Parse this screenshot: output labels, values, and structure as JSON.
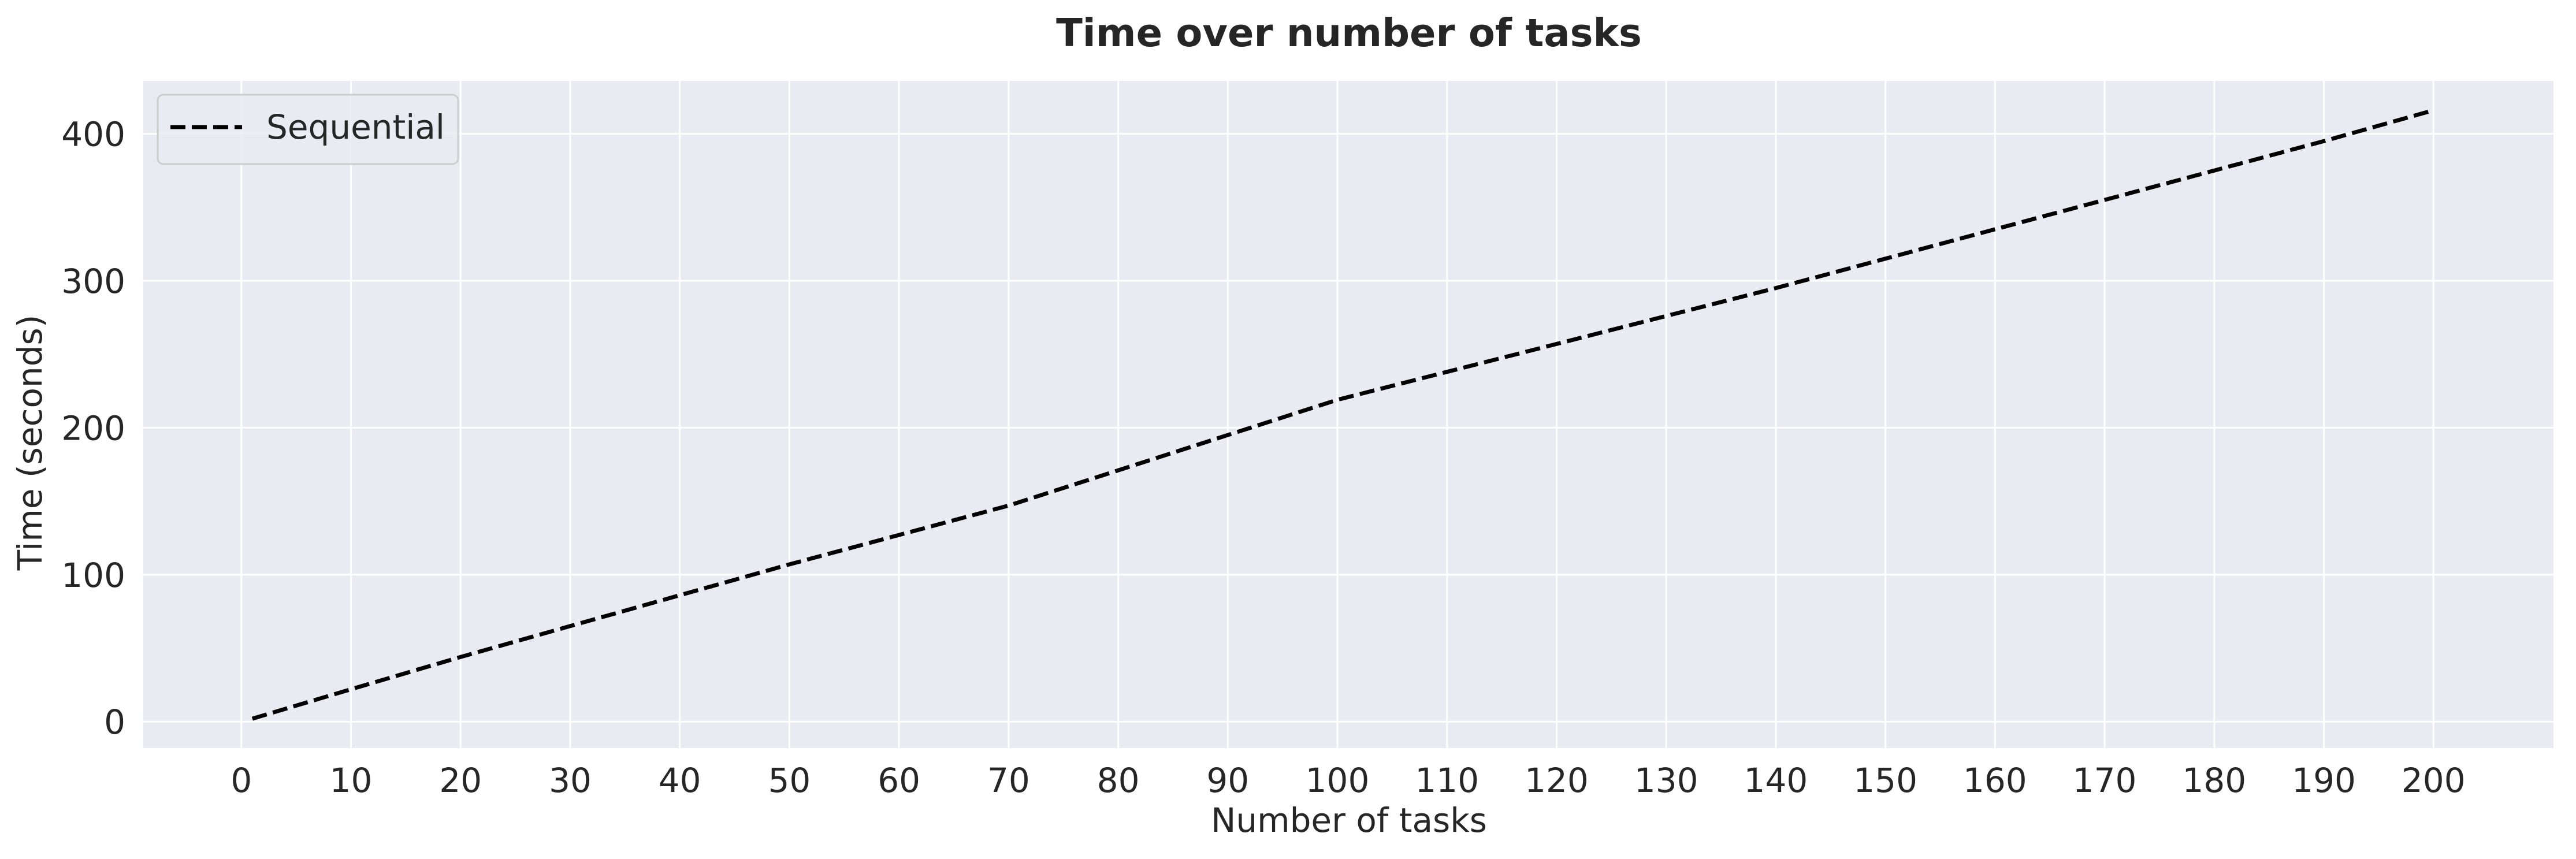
{
  "chart_data": {
    "type": "line",
    "title": "Time over number of tasks",
    "xlabel": "Number of tasks",
    "ylabel": "Time (seconds)",
    "x_ticks": [
      0,
      10,
      20,
      30,
      40,
      50,
      60,
      70,
      80,
      90,
      100,
      110,
      120,
      130,
      140,
      150,
      160,
      170,
      180,
      190,
      200
    ],
    "y_ticks": [
      0,
      100,
      200,
      300,
      400
    ],
    "xlim": [
      -8.95,
      210.95
    ],
    "ylim": [
      -18,
      436
    ],
    "grid": true,
    "legend_position": "top-left",
    "background_color": "#eaeaf2",
    "grid_color": "#ffffff",
    "series": [
      {
        "name": "Sequential",
        "color": "#000000",
        "line_style": "dashed",
        "x": [
          1,
          10,
          20,
          30,
          40,
          50,
          60,
          70,
          80,
          90,
          100,
          110,
          120,
          130,
          140,
          150,
          160,
          170,
          180,
          190,
          200
        ],
        "y": [
          2,
          22,
          44,
          65,
          86,
          107,
          127,
          147,
          171,
          195,
          219,
          238,
          257,
          276,
          295,
          315,
          335,
          355,
          375,
          395,
          416
        ]
      }
    ]
  }
}
